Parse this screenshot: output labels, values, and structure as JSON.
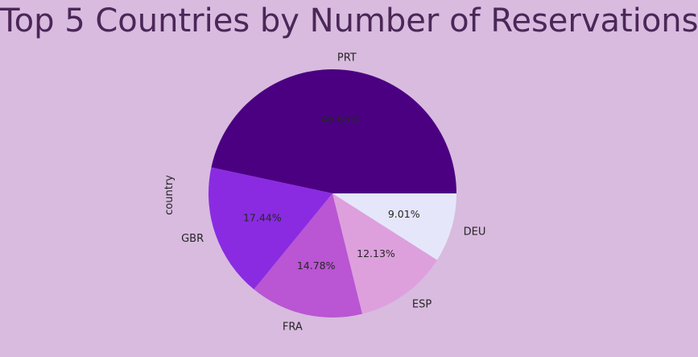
{
  "chart_data": {
    "type": "pie",
    "title": "Top 5 Countries by Number of Reservations",
    "ylabel": "country",
    "start_angle_deg": 0,
    "direction": "counterclockwise",
    "slices": [
      {
        "label": "PRT",
        "value": 46.65,
        "pct_label": "46.65%",
        "color": "#4b0082"
      },
      {
        "label": "GBR",
        "value": 17.44,
        "pct_label": "17.44%",
        "color": "#8a2be2"
      },
      {
        "label": "FRA",
        "value": 14.78,
        "pct_label": "14.78%",
        "color": "#ba55d3"
      },
      {
        "label": "ESP",
        "value": 12.13,
        "pct_label": "12.13%",
        "color": "#dda0dd"
      },
      {
        "label": "DEU",
        "value": 9.01,
        "pct_label": "9.01%",
        "color": "#e6e6fa"
      }
    ]
  }
}
